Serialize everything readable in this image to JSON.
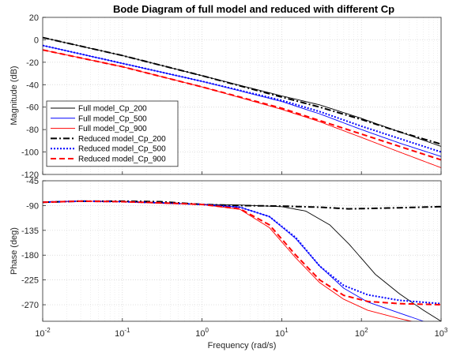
{
  "chart_data": {
    "type": "line",
    "title": "Bode Diagram of full model and reduced with different Cp",
    "xlabel": "Frequency  (rad/s)",
    "xscale": "log",
    "xlim": [
      0.01,
      1000
    ],
    "grid": true,
    "x_ticks": [
      {
        "base": "10",
        "exp": "-2"
      },
      {
        "base": "10",
        "exp": "-1"
      },
      {
        "base": "10",
        "exp": "0"
      },
      {
        "base": "10",
        "exp": "1"
      },
      {
        "base": "10",
        "exp": "2"
      },
      {
        "base": "10",
        "exp": "3"
      }
    ],
    "legend_location": "lower-left of magnitude panel",
    "panels": [
      {
        "name": "magnitude",
        "ylabel": "Magnitude (dB)",
        "ylim": [
          -120,
          20
        ],
        "yticks": [
          "20",
          "0",
          "-20",
          "-40",
          "-60",
          "-80",
          "-100",
          "-120"
        ],
        "series": [
          {
            "name": "Full model_Cp_200",
            "color": "#000000",
            "style": "solid",
            "x": [
              0.01,
              0.1,
              1,
              10,
              30,
              100,
              300,
              1000
            ],
            "y": [
              2,
              -14,
              -32,
              -50,
              -58,
              -70,
              -82,
              -95
            ]
          },
          {
            "name": "Full model_Cp_500",
            "color": "#0000ff",
            "style": "solid",
            "x": [
              0.01,
              0.1,
              1,
              10,
              30,
              100,
              300,
              1000
            ],
            "y": [
              -5,
              -21,
              -37,
              -55,
              -66,
              -80,
              -92,
              -104
            ]
          },
          {
            "name": "Full model_Cp_900",
            "color": "#ff0000",
            "style": "solid",
            "x": [
              0.01,
              0.1,
              1,
              10,
              30,
              100,
              300,
              1000
            ],
            "y": [
              -9,
              -24,
              -42,
              -62,
              -73,
              -87,
              -100,
              -114
            ]
          },
          {
            "name": "Reduced model_Cp_200",
            "color": "#000000",
            "style": "dashdot",
            "x": [
              0.01,
              0.1,
              1,
              10,
              30,
              100,
              300,
              1000
            ],
            "y": [
              2,
              -14,
              -32,
              -51,
              -60,
              -71,
              -82,
              -93
            ]
          },
          {
            "name": "Reduced model_Cp_500",
            "color": "#0000ff",
            "style": "dotted",
            "x": [
              0.01,
              0.1,
              1,
              10,
              30,
              100,
              300,
              1000
            ],
            "y": [
              -5,
              -21,
              -37,
              -54,
              -64,
              -77,
              -88,
              -100
            ]
          },
          {
            "name": "Reduced model_Cp_900",
            "color": "#ff0000",
            "style": "dashed",
            "x": [
              0.01,
              0.1,
              1,
              10,
              30,
              100,
              300,
              1000
            ],
            "y": [
              -9,
              -24,
              -42,
              -61,
              -72,
              -84,
              -95,
              -107
            ]
          }
        ]
      },
      {
        "name": "phase",
        "ylabel": "Phase (deg)",
        "ylim": [
          -300,
          -45
        ],
        "yticks": [
          "-45",
          "-90",
          "-135",
          "-180",
          "-225",
          "-270"
        ],
        "series": [
          {
            "name": "Full model_Cp_200",
            "color": "#000000",
            "style": "solid",
            "x": [
              0.01,
              0.03,
              0.1,
              0.3,
              1,
              3,
              10,
              20,
              40,
              70,
              150,
              300,
              600,
              1000
            ],
            "y": [
              -84,
              -82,
              -83,
              -85,
              -88,
              -89,
              -92,
              -100,
              -125,
              -160,
              -215,
              -250,
              -280,
              -300
            ]
          },
          {
            "name": "Full model_Cp_500",
            "color": "#0000ff",
            "style": "solid",
            "x": [
              0.01,
              0.03,
              0.1,
              0.3,
              1,
              3,
              7,
              15,
              30,
              60,
              120,
              300,
              600,
              1000
            ],
            "y": [
              -83,
              -82,
              -83,
              -85,
              -88,
              -93,
              -110,
              -150,
              -200,
              -240,
              -265,
              -285,
              -300,
              -310
            ]
          },
          {
            "name": "Full model_Cp_900",
            "color": "#ff0000",
            "style": "solid",
            "x": [
              0.01,
              0.03,
              0.1,
              0.3,
              1,
              3,
              7,
              15,
              30,
              60,
              120,
              300,
              600,
              1000
            ],
            "y": [
              -84,
              -82,
              -83,
              -86,
              -88,
              -97,
              -130,
              -185,
              -230,
              -260,
              -280,
              -295,
              -305,
              -310
            ]
          },
          {
            "name": "Reduced model_Cp_200",
            "color": "#000000",
            "style": "dashdot",
            "x": [
              0.01,
              0.03,
              0.1,
              0.3,
              1,
              3,
              10,
              30,
              70,
              150,
              300,
              1000
            ],
            "y": [
              -84,
              -82,
              -82,
              -83,
              -88,
              -90,
              -91,
              -93,
              -96,
              -95,
              -94,
              -92
            ]
          },
          {
            "name": "Reduced model_Cp_500",
            "color": "#0000ff",
            "style": "dotted",
            "x": [
              0.01,
              0.03,
              0.1,
              0.3,
              1,
              3,
              7,
              15,
              30,
              60,
              120,
              300,
              1000
            ],
            "y": [
              -84,
              -82,
              -83,
              -85,
              -88,
              -93,
              -110,
              -148,
              -200,
              -235,
              -252,
              -262,
              -268
            ]
          },
          {
            "name": "Reduced model_Cp_900",
            "color": "#ff0000",
            "style": "dashed",
            "x": [
              0.01,
              0.03,
              0.1,
              0.3,
              1,
              3,
              7,
              15,
              30,
              60,
              120,
              300,
              1000
            ],
            "y": [
              -84,
              -82,
              -83,
              -85,
              -88,
              -96,
              -125,
              -180,
              -225,
              -253,
              -264,
              -268,
              -270
            ]
          }
        ]
      }
    ]
  }
}
